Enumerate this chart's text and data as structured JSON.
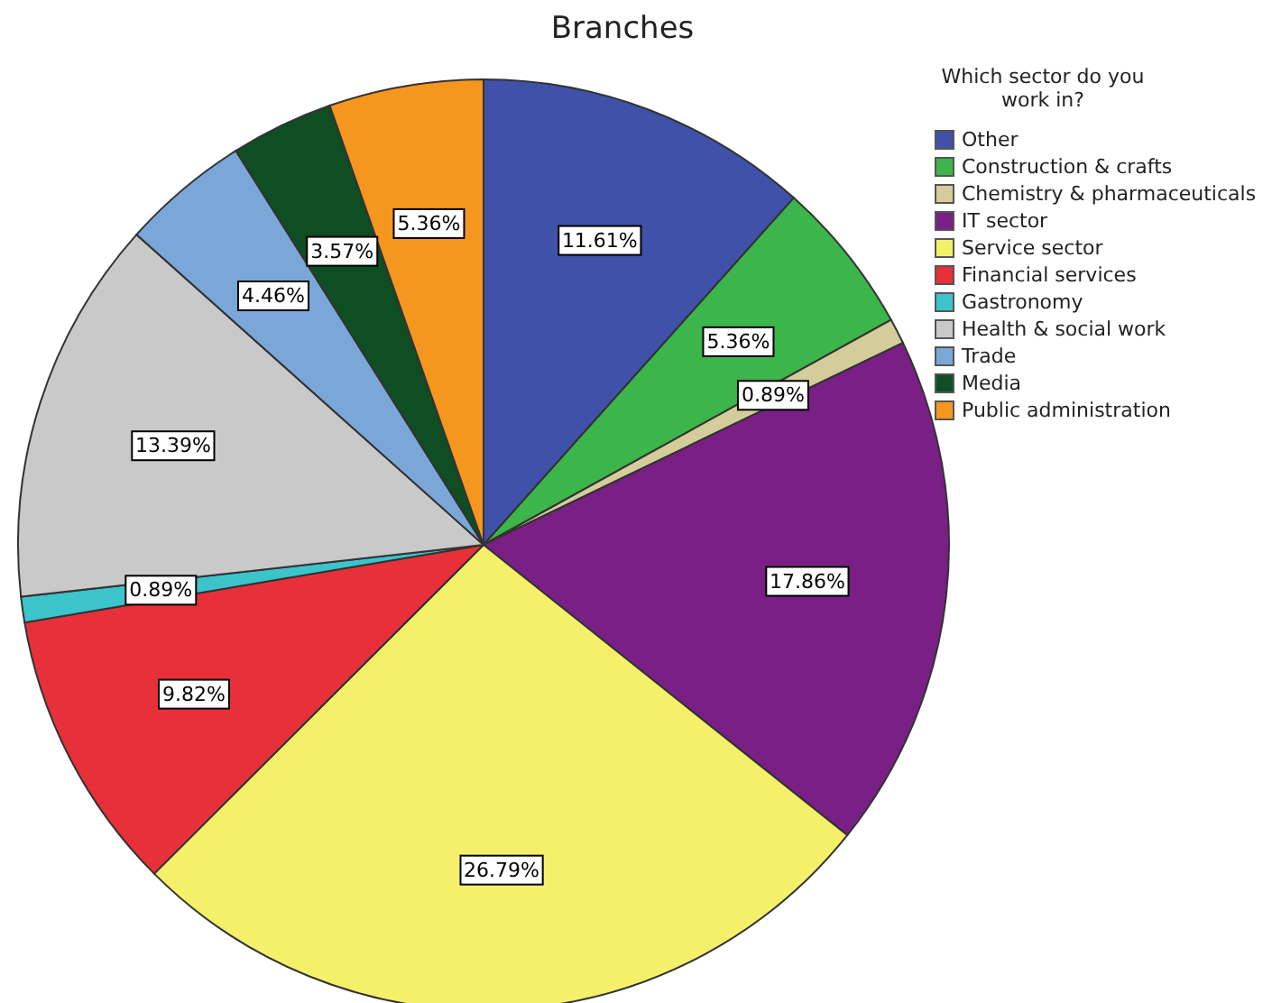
{
  "chart_data": {
    "type": "pie",
    "title": "Branches",
    "legend_title": "Which sector do you work in?",
    "legend": "top right",
    "categories": [
      "Other",
      "Construction & crafts",
      "Chemistry & pharmaceuticals",
      "IT sector",
      "Service sector",
      "Financial services",
      "Gastronomy",
      "Health & social work",
      "Trade",
      "Media",
      "Public administration"
    ],
    "values": [
      11.61,
      5.36,
      0.89,
      17.86,
      26.79,
      9.82,
      0.89,
      13.39,
      4.46,
      3.57,
      5.36
    ],
    "value_labels": [
      "11.61%",
      "5.36%",
      "0.89%",
      "17.86%",
      "26.79%",
      "9.82%",
      "0.89%",
      "13.39%",
      "4.46%",
      "3.57%",
      "5.36%"
    ],
    "colors": [
      "#3f51a8",
      "#3cb54a",
      "#d4cc9a",
      "#7a1f85",
      "#f5f06a",
      "#e8303a",
      "#3bc4c9",
      "#c9c9c9",
      "#7ba7d8",
      "#0f4d22",
      "#f5961e"
    ]
  }
}
